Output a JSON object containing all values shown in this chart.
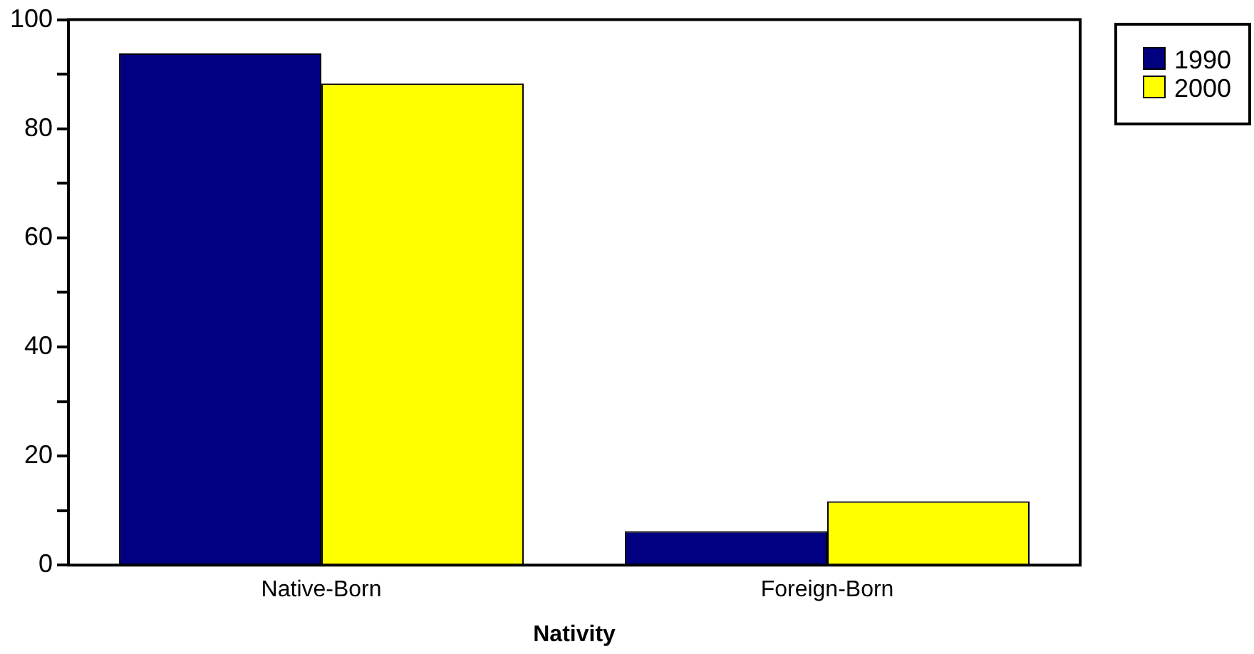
{
  "chart_data": {
    "type": "bar",
    "xlabel": "Nativity",
    "categories": [
      "Native-Born",
      "Foreign-Born"
    ],
    "series": [
      {
        "name": "1990",
        "color": "#000080",
        "values": [
          93.8,
          6.2
        ]
      },
      {
        "name": "2000",
        "color": "#ffff00",
        "values": [
          88.3,
          11.7
        ]
      }
    ],
    "ylim": [
      0,
      100
    ],
    "yticks": [
      0,
      {
        "value": 10,
        "label": null
      },
      20,
      {
        "value": 30,
        "label": null
      },
      40,
      {
        "value": 50,
        "label": null
      },
      60,
      {
        "value": 70,
        "label": null
      },
      80,
      {
        "value": 90,
        "label": null
      },
      100
    ],
    "grid": false,
    "legend": "top right"
  }
}
